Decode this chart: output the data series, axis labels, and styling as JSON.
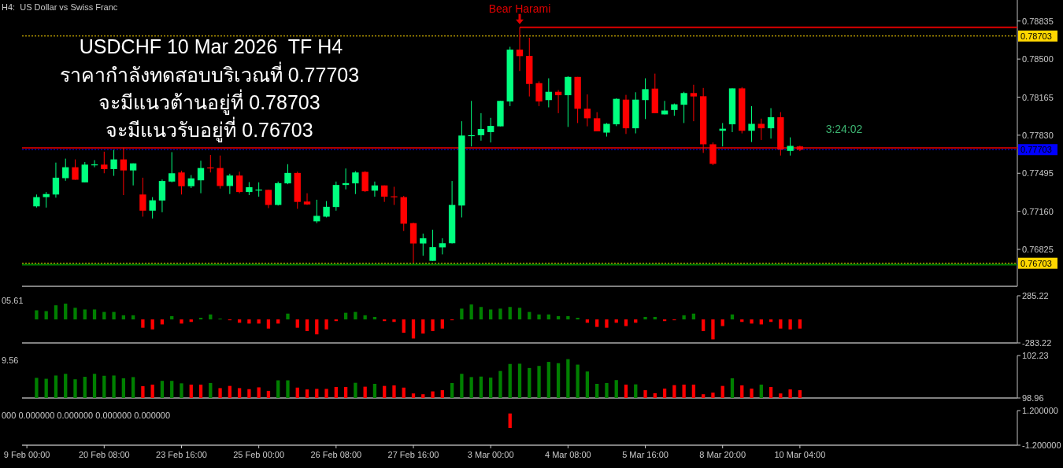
{
  "chart_data": [
    {
      "type": "candlestick",
      "title": "USDCHF 10 Mar 2026  TF H4",
      "subtitle": "ราคากำลังทดสอบบริเวณที่ 0.77703\nจะมีแนวต้านอยู่ที่ 0.78703\nจะมีแนวรับอยู่ที่ 0.76703",
      "annotations": [
        "H4:  US Dollar vs Swiss Franc",
        "3:24:02"
      ],
      "categories": [
        null,
        null,
        null,
        null,
        null,
        null,
        null,
        null,
        null,
        null,
        null,
        null,
        null,
        null,
        null,
        null,
        null,
        null,
        null,
        null,
        null,
        null,
        null,
        null,
        null,
        null,
        null,
        null,
        null,
        null,
        null,
        null,
        null,
        null,
        null,
        null,
        null,
        null,
        null,
        null,
        null,
        null,
        null,
        null,
        null,
        null,
        null,
        null,
        null,
        null,
        null,
        null,
        null,
        null,
        null,
        null,
        null,
        null,
        null,
        null,
        null,
        null,
        null,
        null,
        null,
        null,
        null,
        null,
        null,
        null,
        null,
        null,
        null,
        null,
        null,
        null,
        null,
        null,
        null,
        null,
        null,
        null,
        null,
        null,
        null,
        null,
        null,
        null,
        null,
        null,
        null,
        null,
        null,
        null,
        null,
        null,
        null,
        null,
        null,
        null,
        null,
        null,
        null
      ],
      "ohlc": [
        null,
        [
          0.77204,
          0.77308,
          0.77193,
          0.77285
        ],
        [
          0.77285,
          0.7733,
          0.77193,
          0.77312
        ],
        [
          0.77308,
          0.77589,
          0.7728,
          0.77456
        ],
        [
          0.77452,
          0.77624,
          0.77429,
          0.77548
        ],
        [
          0.77548,
          0.77617,
          0.77438,
          0.77438
        ],
        [
          0.77415,
          0.77594,
          0.77415,
          0.77571
        ],
        [
          0.77569,
          0.7761,
          0.77548,
          0.77573
        ],
        [
          0.77571,
          0.77685,
          0.77495,
          0.77532
        ],
        [
          0.77532,
          0.77701,
          0.77472,
          0.77617
        ],
        [
          0.77617,
          0.7772,
          0.77303,
          0.7752
        ],
        [
          0.7752,
          0.77582,
          0.77388,
          0.77582
        ],
        [
          0.77308,
          0.77456,
          0.77113,
          0.77166
        ],
        [
          0.77166,
          0.77285,
          0.77097,
          0.77257
        ],
        [
          0.77255,
          0.7744,
          0.77152,
          0.77427
        ],
        [
          0.77422,
          0.77681,
          0.77415,
          0.77495
        ],
        [
          0.77502,
          0.77518,
          0.77308,
          0.77381
        ],
        [
          0.77381,
          0.77479,
          0.77365,
          0.7745
        ],
        [
          0.77433,
          0.77605,
          0.77319,
          0.77541
        ],
        [
          0.77546,
          0.77656,
          0.77502,
          0.77541
        ],
        [
          0.77541,
          0.77651,
          0.7736,
          0.77383
        ],
        [
          0.77383,
          0.77491,
          0.77312,
          0.77475
        ],
        [
          0.77475,
          0.77509,
          0.77319,
          0.7733
        ],
        [
          0.7733,
          0.77417,
          0.77303,
          0.77372
        ],
        [
          0.77346,
          0.77415,
          0.77289,
          0.77351
        ],
        [
          0.77349,
          0.77349,
          0.77188,
          0.77216
        ],
        [
          0.77216,
          0.77422,
          0.77211,
          0.77408
        ],
        [
          0.77406,
          0.77575,
          0.77399,
          0.77498
        ],
        [
          0.77498,
          0.77509,
          0.77182,
          0.77243
        ],
        [
          0.77246,
          0.77319,
          0.77216,
          0.7722
        ],
        [
          0.77072,
          0.77262,
          0.77056,
          0.7712
        ],
        [
          0.77113,
          0.7725,
          0.77106,
          0.772
        ],
        [
          0.77198,
          0.77422,
          0.77166,
          0.77392
        ],
        [
          0.77392,
          0.77537,
          0.77353,
          0.77408
        ],
        [
          0.77406,
          0.77514,
          0.77312,
          0.77502
        ],
        [
          0.77507,
          0.77514,
          0.7733,
          0.77337
        ],
        [
          0.77342,
          0.77422,
          0.77289,
          0.77388
        ],
        [
          0.77388,
          0.77388,
          0.77243,
          0.77289
        ],
        [
          0.77292,
          0.77376,
          0.77216,
          0.77287
        ],
        [
          0.77285,
          0.77296,
          0.76987,
          0.77051
        ],
        [
          0.77056,
          0.7706,
          0.76708,
          0.76877
        ],
        [
          0.76877,
          0.76964,
          0.76769,
          0.76923
        ],
        [
          0.76724,
          0.76998,
          0.76724,
          0.76845
        ],
        [
          0.76843,
          0.76923,
          0.76781,
          0.76879
        ],
        [
          0.76879,
          0.77427,
          0.76877,
          0.77216
        ],
        [
          0.77211,
          0.77953,
          0.77106,
          0.77827
        ],
        [
          0.77825,
          0.78132,
          0.77731,
          0.7783
        ],
        [
          0.7783,
          0.78024,
          0.77782,
          0.77885
        ],
        [
          0.77857,
          0.77983,
          0.77766,
          0.77912
        ],
        [
          0.77908,
          0.78132,
          0.77908,
          0.78132
        ],
        [
          0.78127,
          0.78608,
          0.78086,
          0.78583
        ],
        [
          0.78583,
          0.7878,
          0.78395,
          0.78526
        ],
        [
          0.78528,
          0.78688,
          0.78171,
          0.78281
        ],
        [
          0.78288,
          0.78304,
          0.78086,
          0.78127
        ],
        [
          0.78139,
          0.78331,
          0.78075,
          0.78212
        ],
        [
          0.78212,
          0.78228,
          0.78024,
          0.78182
        ],
        [
          0.78182,
          0.78349,
          0.77903,
          0.78343
        ],
        [
          0.78343,
          0.78343,
          0.77937,
          0.78063
        ],
        [
          0.78063,
          0.78189,
          0.77908,
          0.77979
        ],
        [
          0.77979,
          0.78033,
          0.77864,
          0.77864
        ],
        [
          0.77853,
          0.77937,
          0.77818,
          0.7793
        ],
        [
          0.77926,
          0.78155,
          0.7791,
          0.7815
        ],
        [
          0.78143,
          0.78185,
          0.77841,
          0.77891
        ],
        [
          0.77891,
          0.78208,
          0.77846,
          0.78143
        ],
        [
          0.78139,
          0.78331,
          0.77972,
          0.78235
        ],
        [
          0.7824,
          0.78372,
          0.78024,
          0.78024
        ],
        [
          0.78013,
          0.78132,
          0.78013,
          0.78047
        ],
        [
          0.78052,
          0.78109,
          0.78001,
          0.78102
        ],
        [
          0.78098,
          0.78212,
          0.77937,
          0.78201
        ],
        [
          0.78201,
          0.78274,
          0.77953,
          0.78171
        ],
        [
          0.78173,
          0.78246,
          0.77674,
          0.7775
        ],
        [
          0.7775,
          0.77766,
          0.77566,
          0.77578
        ],
        [
          0.77869,
          0.77937,
          0.77731,
          0.77887
        ],
        [
          0.77926,
          0.78242,
          0.77857,
          0.78242
        ],
        [
          0.78242,
          0.78253,
          0.77846,
          0.77869
        ],
        [
          0.77869,
          0.78086,
          0.7777,
          0.7793
        ],
        [
          0.7793,
          0.77976,
          0.77788,
          0.77891
        ],
        [
          0.77891,
          0.78068,
          0.778,
          0.77988
        ],
        [
          0.77988,
          0.78033,
          0.77651,
          0.77704
        ],
        [
          0.77692,
          0.77811,
          0.77651,
          0.77736
        ],
        [
          0.77731,
          0.77738,
          0.7769,
          0.77703
        ],
        null,
        null,
        null,
        null,
        null,
        null,
        null,
        null,
        null,
        null,
        null,
        null,
        null,
        null,
        null,
        null,
        null,
        null,
        null,
        null,
        null,
        null
      ],
      "colors": [
        null,
        "#00ff7f",
        "#00ff7f",
        "#00ff7f",
        "#00ff7f",
        "#ff0000",
        "#00ff7f",
        "#00ff7f",
        "#ff0000",
        "#00ff7f",
        "#ff0000",
        "#00ff7f",
        "#ff0000",
        "#00ff7f",
        "#00ff7f",
        "#00ff7f",
        "#ff0000",
        "#00ff7f",
        "#00ff7f",
        "#ff0000",
        "#ff0000",
        "#00ff7f",
        "#ff0000",
        "#00ff7f",
        "#00ff7f",
        "#ff0000",
        "#00ff7f",
        "#00ff7f",
        "#ff0000",
        "#ff0000",
        "#00ff7f",
        "#00ff7f",
        "#00ff7f",
        "#00ff7f",
        "#00ff7f",
        "#ff0000",
        "#00ff7f",
        "#ff0000",
        "#ff0000",
        "#ff0000",
        "#ff0000",
        "#00ff7f",
        "#00ff7f",
        "#00ff7f",
        "#00ff7f",
        "#00ff7f",
        "#00ff7f",
        "#00ff7f",
        "#00ff7f",
        "#00ff7f",
        "#00ff7f",
        "#ff0000",
        "#ff0000",
        "#ff0000",
        "#00ff7f",
        "#ff0000",
        "#00ff7f",
        "#ff0000",
        "#ff0000",
        "#ff0000",
        "#00ff7f",
        "#00ff7f",
        "#ff0000",
        "#00ff7f",
        "#00ff7f",
        "#ff0000",
        "#00ff7f",
        "#00ff7f",
        "#00ff7f",
        "#ff0000",
        "#ff0000",
        "#ff0000",
        "#00ff7f",
        "#00ff7f",
        "#ff0000",
        "#00ff7f",
        "#ff0000",
        "#00ff7f",
        "#ff0000",
        "#00ff7f",
        "#ff0000",
        null,
        null,
        null,
        null,
        null,
        null,
        null,
        null,
        null,
        null,
        null,
        null,
        null,
        null,
        null,
        null,
        null,
        null,
        null,
        null,
        null,
        null
      ],
      "ylim": [
        0.765,
        0.7902
      ],
      "yticks": [
        0.78835,
        {
          "value": 0.785,
          "label": "0.78500"
        },
        0.78165,
        {
          "value": 0.7783,
          "label": "0.77830"
        },
        0.77495,
        {
          "value": 0.7716,
          "label": "0.77160"
        },
        0.76825
      ],
      "ref_lines": [
        {
          "axis": "y",
          "value": 0.78703,
          "label": "0.78703",
          "color": "#ffd700",
          "line_style": "dotted"
        },
        {
          "axis": "y",
          "value": 0.77703,
          "label": "0.77703",
          "color": "#0000ff",
          "line_style": "dotted"
        },
        {
          "axis": "y",
          "value": 0.76703,
          "label": "0.76703",
          "color": "#ffd700",
          "line_style": "dotted"
        },
        {
          "axis": "y",
          "value": 0.77718,
          "color": "#b00000"
        },
        {
          "axis": "y",
          "value": 0.7669,
          "color": "#008000"
        },
        {
          "axis": "y",
          "value": 0.7878,
          "label": "Bear Harami",
          "color": "#e00000"
        }
      ],
      "tick_labels": "y"
    },
    {
      "type": "bar",
      "annotations": [
        "05.61"
      ],
      "categories": [
        null,
        null,
        null,
        null,
        null,
        null,
        null,
        null,
        null,
        null,
        null,
        null,
        null,
        null,
        null,
        null,
        null,
        null,
        null,
        null,
        null,
        null,
        null,
        null,
        null,
        null,
        null,
        null,
        null,
        null,
        null,
        null,
        null,
        null,
        null,
        null,
        null,
        null,
        null,
        null,
        null,
        null,
        null,
        null,
        null,
        null,
        null,
        null,
        null,
        null,
        null,
        null,
        null,
        null,
        null,
        null,
        null,
        null,
        null,
        null,
        null,
        null,
        null,
        null,
        null,
        null,
        null,
        null,
        null,
        null,
        null,
        null,
        null,
        null,
        null,
        null,
        null,
        null,
        null,
        null,
        null,
        null,
        null,
        null,
        null,
        null,
        null,
        null,
        null,
        null,
        null,
        null,
        null,
        null,
        null,
        null,
        null,
        null,
        null,
        null,
        null,
        null,
        null
      ],
      "values": [
        null,
        110,
        100,
        170,
        190,
        140,
        120,
        120,
        90,
        90,
        50,
        50,
        -100,
        -120,
        -60,
        40,
        -50,
        -30,
        20,
        60,
        10,
        -10,
        -40,
        -50,
        -50,
        -110,
        -50,
        70,
        -100,
        -140,
        -180,
        -120,
        -20,
        80,
        90,
        50,
        30,
        -20,
        -30,
        -160,
        -230,
        -170,
        -140,
        -110,
        -10,
        130,
        180,
        150,
        120,
        130,
        150,
        140,
        90,
        60,
        60,
        40,
        40,
        20,
        -40,
        -90,
        -100,
        -40,
        -80,
        -40,
        30,
        30,
        -20,
        -10,
        50,
        70,
        -140,
        -240,
        -80,
        60,
        -30,
        -50,
        -60,
        -30,
        -110,
        -120,
        -110,
        null,
        null,
        null,
        null,
        null,
        null,
        null,
        null,
        null,
        null,
        null,
        null,
        null,
        null,
        null,
        null,
        null,
        null,
        null,
        null,
        null,
        null
      ],
      "colors": [
        null,
        "#008000",
        "#008000",
        "#008000",
        "#008000",
        "#008000",
        "#008000",
        "#008000",
        "#008000",
        "#008000",
        "#008000",
        "#008000",
        "#ff0000",
        "#ff0000",
        "#ff0000",
        "#008000",
        "#ff0000",
        "#ff0000",
        "#008000",
        "#008000",
        "#008000",
        "#ff0000",
        "#ff0000",
        "#ff0000",
        "#ff0000",
        "#ff0000",
        "#ff0000",
        "#008000",
        "#ff0000",
        "#ff0000",
        "#ff0000",
        "#ff0000",
        "#ff0000",
        "#008000",
        "#008000",
        "#008000",
        "#008000",
        "#ff0000",
        "#ff0000",
        "#ff0000",
        "#ff0000",
        "#ff0000",
        "#ff0000",
        "#ff0000",
        "#ff0000",
        "#008000",
        "#008000",
        "#008000",
        "#008000",
        "#008000",
        "#008000",
        "#008000",
        "#008000",
        "#008000",
        "#008000",
        "#008000",
        "#008000",
        "#008000",
        "#ff0000",
        "#ff0000",
        "#ff0000",
        "#ff0000",
        "#ff0000",
        "#ff0000",
        "#008000",
        "#008000",
        "#ff0000",
        "#ff0000",
        "#008000",
        "#008000",
        "#ff0000",
        "#ff0000",
        "#ff0000",
        "#008000",
        "#ff0000",
        "#ff0000",
        "#ff0000",
        "#ff0000",
        "#ff0000",
        "#ff0000",
        "#ff0000",
        null,
        null,
        null,
        null,
        null,
        null,
        null,
        null,
        null,
        null,
        null,
        null,
        null,
        null,
        null,
        null,
        null,
        null,
        null,
        null,
        null,
        null
      ],
      "ylim": [
        -283.22,
        285.22
      ],
      "yticks": [
        285.22,
        -283.22
      ],
      "tick_labels": "y"
    },
    {
      "type": "bar",
      "annotations": [
        "9.56"
      ],
      "categories": [
        null,
        null,
        null,
        null,
        null,
        null,
        null,
        null,
        null,
        null,
        null,
        null,
        null,
        null,
        null,
        null,
        null,
        null,
        null,
        null,
        null,
        null,
        null,
        null,
        null,
        null,
        null,
        null,
        null,
        null,
        null,
        null,
        null,
        null,
        null,
        null,
        null,
        null,
        null,
        null,
        null,
        null,
        null,
        null,
        null,
        null,
        null,
        null,
        null,
        null,
        null,
        null,
        null,
        null,
        null,
        null,
        null,
        null,
        null,
        null,
        null,
        null,
        null,
        null,
        null,
        null,
        null,
        null,
        null,
        null,
        null,
        null,
        null,
        null,
        null,
        null,
        null,
        null,
        null,
        null,
        null,
        null,
        null,
        null,
        null,
        null,
        null,
        null,
        null,
        null,
        null,
        null,
        null,
        null,
        null,
        null,
        null,
        null,
        null,
        null,
        null,
        null,
        null
      ],
      "values": [
        null,
        100.51,
        100.44,
        100.69,
        100.82,
        100.4,
        100.59,
        100.82,
        100.67,
        100.69,
        100.48,
        100.57,
        99.87,
        99.99,
        100.28,
        100.28,
        100.09,
        99.99,
        99.99,
        100.11,
        99.72,
        99.89,
        99.72,
        99.64,
        99.78,
        99.51,
        100.32,
        100.32,
        99.76,
        99.62,
        99.66,
        99.66,
        99.81,
        99.81,
        100.13,
        99.83,
        100.05,
        99.89,
        99.93,
        99.76,
        99.31,
        99.25,
        99.47,
        99.56,
        100.11,
        100.82,
        100.57,
        100.61,
        100.53,
        101.04,
        101.58,
        101.6,
        101.27,
        101.43,
        101.74,
        101.64,
        101.95,
        101.53,
        101.0,
        100.05,
        100.11,
        100.34,
        99.99,
        100.01,
        99.56,
        99.33,
        99.68,
        99.95,
        99.99,
        99.99,
        99.25,
        99.37,
        99.89,
        100.48,
        99.93,
        99.68,
        99.99,
        99.81,
        99.31,
        99.62,
        99.56,
        null,
        null,
        null,
        null,
        null,
        null,
        null,
        null,
        null,
        null,
        null,
        null,
        null,
        null,
        null,
        null,
        null,
        null,
        null,
        null,
        null,
        null
      ],
      "colors": [
        null,
        "#008000",
        "#008000",
        "#008000",
        "#008000",
        "#008000",
        "#008000",
        "#008000",
        "#008000",
        "#008000",
        "#008000",
        "#008000",
        "#ff0000",
        "#ff0000",
        "#008000",
        "#008000",
        "#008000",
        "#ff0000",
        "#ff0000",
        "#008000",
        "#ff0000",
        "#ff0000",
        "#ff0000",
        "#ff0000",
        "#ff0000",
        "#ff0000",
        "#008000",
        "#008000",
        "#ff0000",
        "#ff0000",
        "#ff0000",
        "#ff0000",
        "#ff0000",
        "#ff0000",
        "#008000",
        "#ff0000",
        "#008000",
        "#ff0000",
        "#ff0000",
        "#ff0000",
        "#ff0000",
        "#ff0000",
        "#ff0000",
        "#ff0000",
        "#008000",
        "#008000",
        "#008000",
        "#008000",
        "#008000",
        "#008000",
        "#008000",
        "#008000",
        "#008000",
        "#008000",
        "#008000",
        "#008000",
        "#008000",
        "#008000",
        "#008000",
        "#008000",
        "#008000",
        "#008000",
        "#ff0000",
        "#008000",
        "#ff0000",
        "#ff0000",
        "#ff0000",
        "#ff0000",
        "#ff0000",
        "#ff0000",
        "#ff0000",
        "#ff0000",
        "#ff0000",
        "#008000",
        "#ff0000",
        "#ff0000",
        "#008000",
        "#ff0000",
        "#ff0000",
        "#ff0000",
        "#ff0000",
        null,
        null,
        null,
        null,
        null,
        null,
        null,
        null,
        null,
        null,
        null,
        null,
        null,
        null,
        null,
        null,
        null,
        null,
        null,
        null,
        null,
        null
      ],
      "ylim": [
        98.96,
        102.23
      ],
      "yticks": [
        102.23,
        98.96
      ],
      "tick_labels": "y"
    },
    {
      "type": "bar",
      "annotations": [
        "000 0.000000 0.000000 0.000000 0.000000"
      ],
      "categories": [
        "9 Feb 00:00",
        null,
        null,
        null,
        null,
        null,
        null,
        null,
        "20 Feb 08:00",
        null,
        null,
        null,
        null,
        null,
        null,
        null,
        "23 Feb 16:00",
        null,
        null,
        null,
        null,
        null,
        null,
        null,
        "25 Feb 00:00",
        null,
        null,
        null,
        null,
        null,
        null,
        null,
        "26 Feb 08:00",
        null,
        null,
        null,
        null,
        null,
        null,
        null,
        "27 Feb 16:00",
        null,
        null,
        null,
        null,
        null,
        null,
        null,
        "3 Mar 00:00",
        null,
        null,
        null,
        null,
        null,
        null,
        null,
        "4 Mar 08:00",
        null,
        null,
        null,
        null,
        null,
        null,
        null,
        "5 Mar 16:00",
        null,
        null,
        null,
        null,
        null,
        null,
        null,
        "8 Mar 20:00",
        null,
        null,
        null,
        null,
        null,
        null,
        null,
        "10 Mar 04:00",
        null,
        null,
        null,
        null,
        null,
        null,
        null,
        null,
        null,
        null,
        null,
        null,
        null,
        null,
        null,
        null,
        null,
        null,
        null,
        null,
        null,
        null
      ],
      "values": [
        null,
        null,
        null,
        null,
        null,
        null,
        null,
        null,
        null,
        null,
        null,
        null,
        null,
        null,
        null,
        null,
        null,
        null,
        null,
        null,
        null,
        null,
        null,
        null,
        null,
        null,
        null,
        null,
        null,
        null,
        null,
        null,
        null,
        null,
        null,
        null,
        null,
        null,
        null,
        null,
        null,
        null,
        null,
        null,
        null,
        null,
        null,
        null,
        null,
        null,
        1,
        null,
        null,
        null,
        null,
        null,
        null,
        null,
        null,
        null,
        null,
        null,
        null,
        null,
        null,
        null,
        null,
        null,
        null,
        null,
        null,
        null,
        null,
        null,
        null,
        null,
        null,
        null,
        null,
        null,
        null,
        null,
        null,
        null,
        null,
        null,
        null,
        null,
        null,
        null,
        null,
        null,
        null,
        null,
        null,
        null,
        null,
        null,
        null,
        null,
        null,
        null,
        null
      ],
      "color": "#ff0000",
      "ylim": [
        -1.2,
        1.2
      ],
      "yticks": [
        {
          "value": 1.2,
          "label": "1.200000"
        },
        {
          "value": -1.2,
          "label": "-1.200000"
        }
      ]
    }
  ]
}
